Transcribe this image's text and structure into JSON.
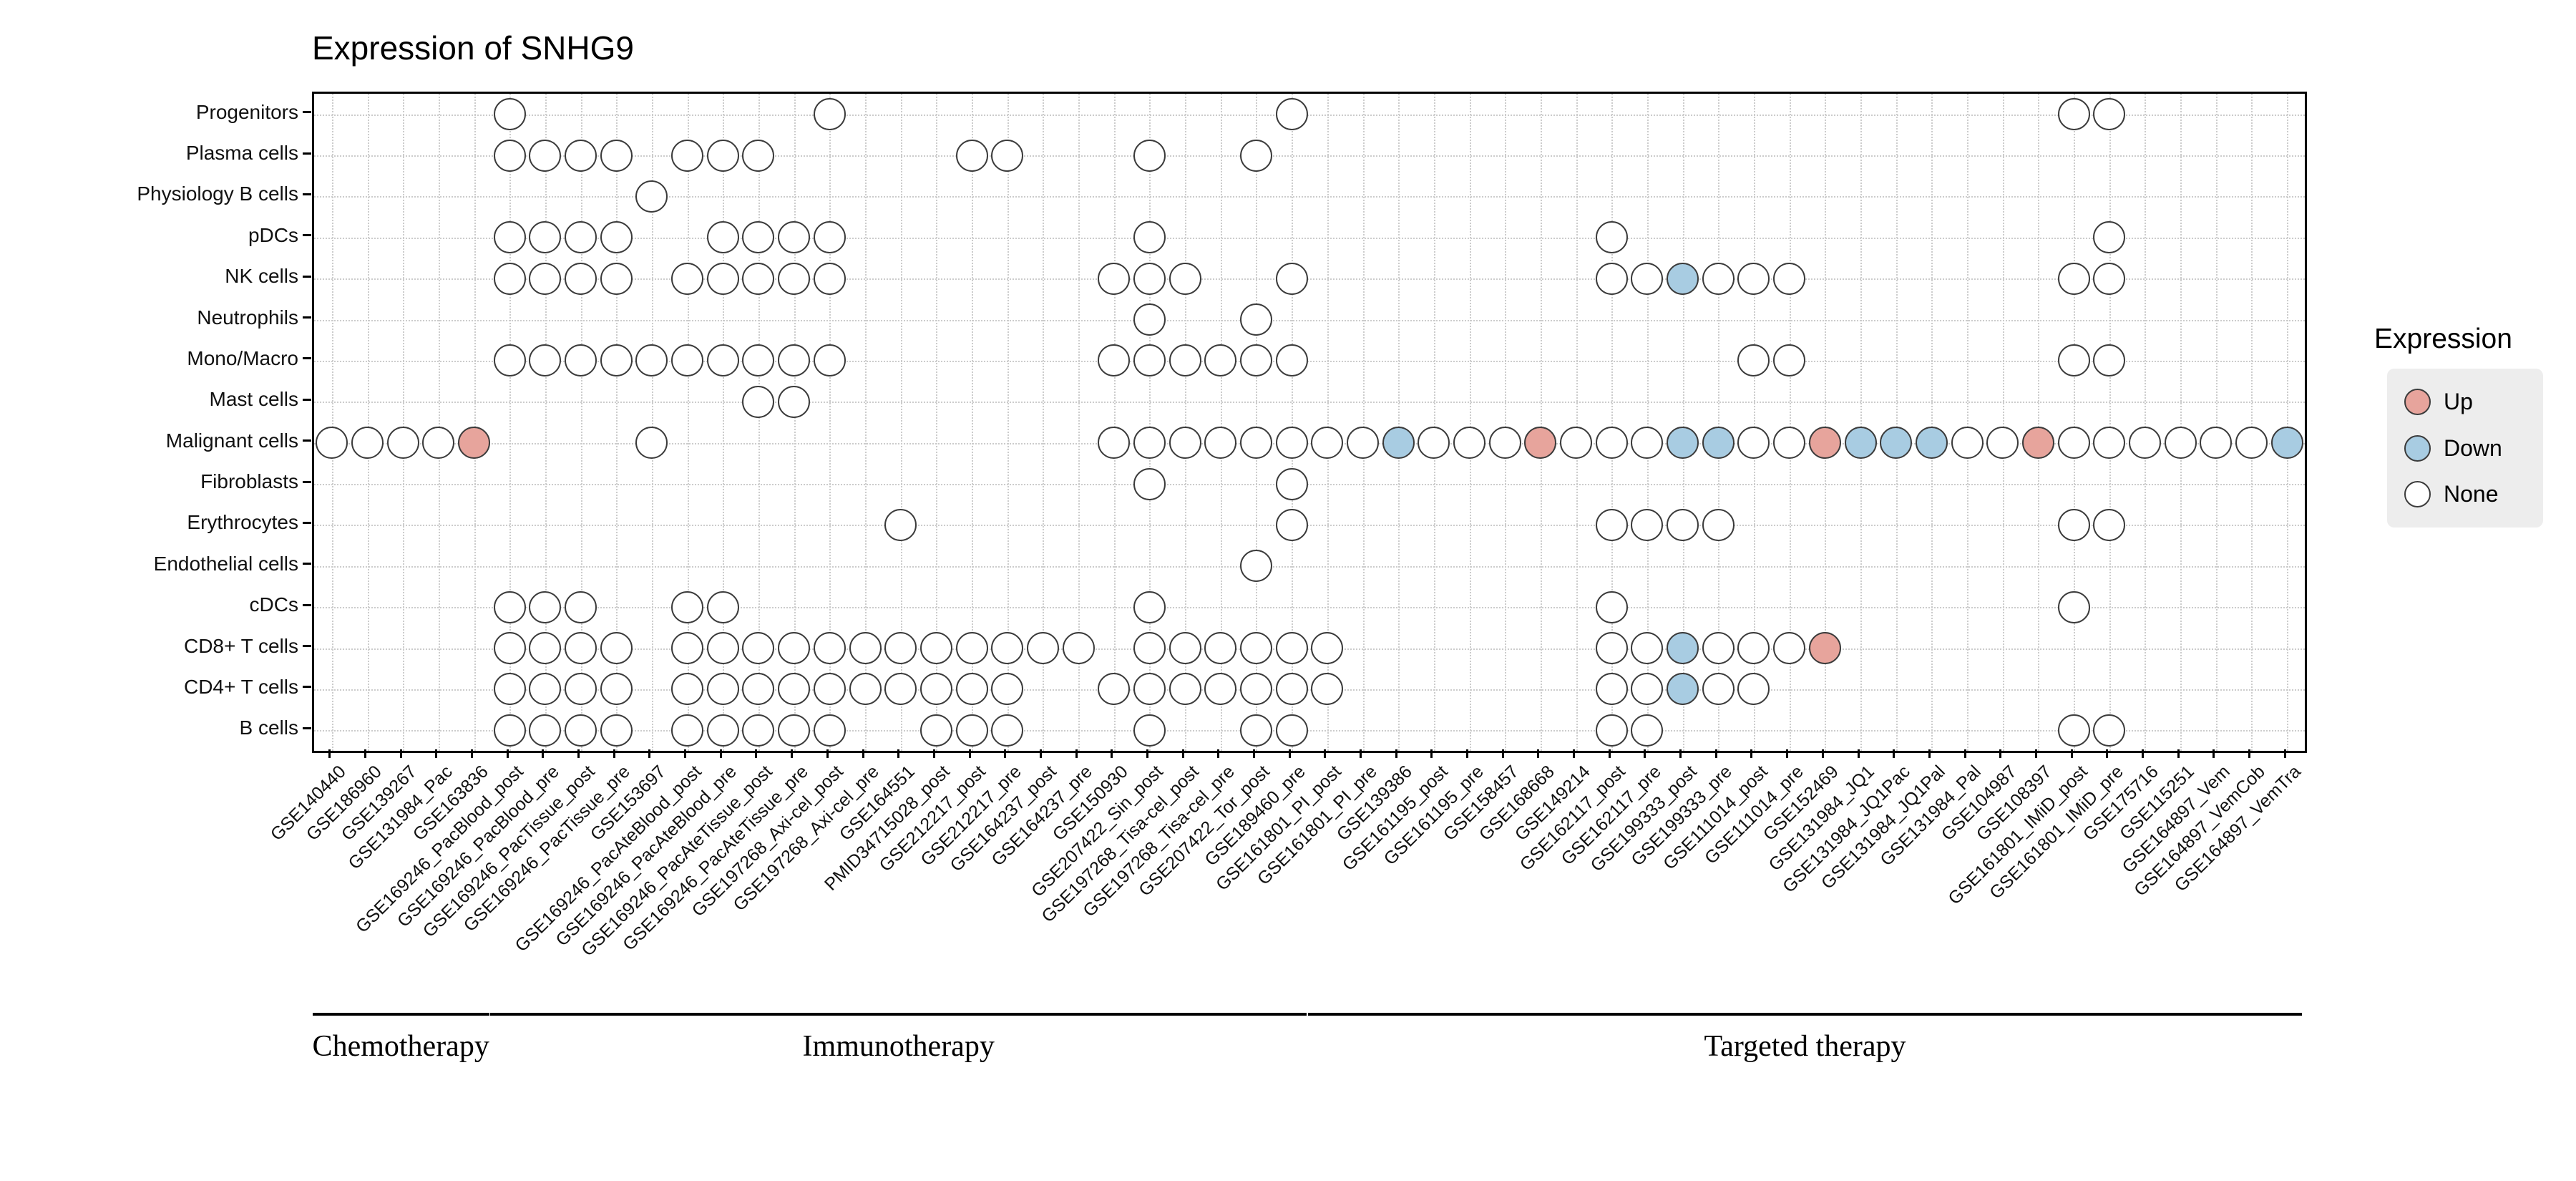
{
  "chart_data": {
    "type": "heatmap",
    "subtype": "categorical-dot-matrix",
    "title": "Expression of SNHG9",
    "xlabel": "",
    "ylabel": "",
    "grid": true,
    "legend_position": "right",
    "rows": [
      "Progenitors",
      "Plasma cells",
      "Physiology B cells",
      "pDCs",
      "NK cells",
      "Neutrophils",
      "Mono/Macro",
      "Mast cells",
      "Malignant cells",
      "Fibroblasts",
      "Erythrocytes",
      "Endothelial cells",
      "cDCs",
      "CD8+ T cells",
      "CD4+ T cells",
      "B cells"
    ],
    "columns": [
      "GSE140440",
      "GSE186960",
      "GSE139267",
      "GSE131984_Pac",
      "GSE163836",
      "GSE169246_PacBlood_post",
      "GSE169246_PacBlood_pre",
      "GSE169246_PacTissue_post",
      "GSE169246_PacTissue_pre",
      "GSE153697",
      "GSE169246_PacAteBlood_post",
      "GSE169246_PacAteBlood_pre",
      "GSE169246_PacAteTissue_post",
      "GSE169246_PacAteTissue_pre",
      "GSE197268_Axi-cel_post",
      "GSE197268_Axi-cel_pre",
      "GSE164551",
      "PMID34715028_post",
      "GSE212217_post",
      "GSE212217_pre",
      "GSE164237_post",
      "GSE164237_pre",
      "GSE150930",
      "GSE207422_Sin_post",
      "GSE197268_Tisa-cel_post",
      "GSE197268_Tisa-cel_pre",
      "GSE207422_Tor_post",
      "GSE189460_pre",
      "GSE161801_PI_post",
      "GSE161801_PI_pre",
      "GSE139386",
      "GSE161195_post",
      "GSE161195_pre",
      "GSE158457",
      "GSE168668",
      "GSE149214",
      "GSE162117_post",
      "GSE162117_pre",
      "GSE199333_post",
      "GSE199333_pre",
      "GSE111014_post",
      "GSE111014_pre",
      "GSE152469",
      "GSE131984_JQ1",
      "GSE131984_JQ1Pac",
      "GSE131984_JQ1Pal",
      "GSE131984_Pal",
      "GSE104987",
      "GSE108397",
      "GSE161801_IMiD_post",
      "GSE161801_IMiD_pre",
      "GSE175716",
      "GSE115251",
      "GSE164897_Vem",
      "GSE164897_VemCob",
      "GSE164897_VemTra"
    ],
    "groups": [
      {
        "label": "Chemotherapy",
        "start": 0,
        "end": 4
      },
      {
        "label": "Immunotherapy",
        "start": 5,
        "end": 27
      },
      {
        "label": "Targeted therapy",
        "start": 28,
        "end": 55
      }
    ],
    "matrix_key": {
      ".": "no data",
      "o": "none",
      "u": "up",
      "d": "down"
    },
    "matrix": [
      ".....o........o............o.....................oo.....",
      ".....oooo.ooo.....oo...o..o.............................",
      ".........o..............................................",
      ".....oooo..oooo........o............o.............o.....",
      ".....oooo.ooooo.......ooo..o........oodooo.......oo.....",
      ".......................o..o.............................",
      ".....oooooooooo.......oooooo............oo.......oo.....",
      "............oo..........................................",
      "oooou....o............oooooooodooouoooddooudddoouooooood",
      ".......................o...o............................",
      "................o..........o........oooo.........oo.....",
      "..........................o.............................",
      ".....ooo..oo...........o............o............o......",
      ".....oooo.oooooooooooo.oooooo.......oodooou.............",
      ".....oooo.oooooooooo..ooooooo.......oodoo...............",
      ".....oooo.ooooo..ooo...o..oo........oo...........oo....."
    ],
    "legend": {
      "title": "Expression",
      "items": [
        {
          "label": "Up",
          "value": "u",
          "color": "#E7A49C"
        },
        {
          "label": "Down",
          "value": "d",
          "color": "#A8CCE2"
        },
        {
          "label": "None",
          "value": "o",
          "color": "#FFFFFF"
        }
      ]
    },
    "colors": {
      "up": "#E7A49C",
      "down": "#A8CCE2",
      "none": "#FFFFFF",
      "dot_border": "#3B3B3B",
      "grid": "#CCCCCC",
      "panel_border": "#000000",
      "legend_bg": "#EDEDED",
      "background": "#FFFFFF"
    }
  }
}
